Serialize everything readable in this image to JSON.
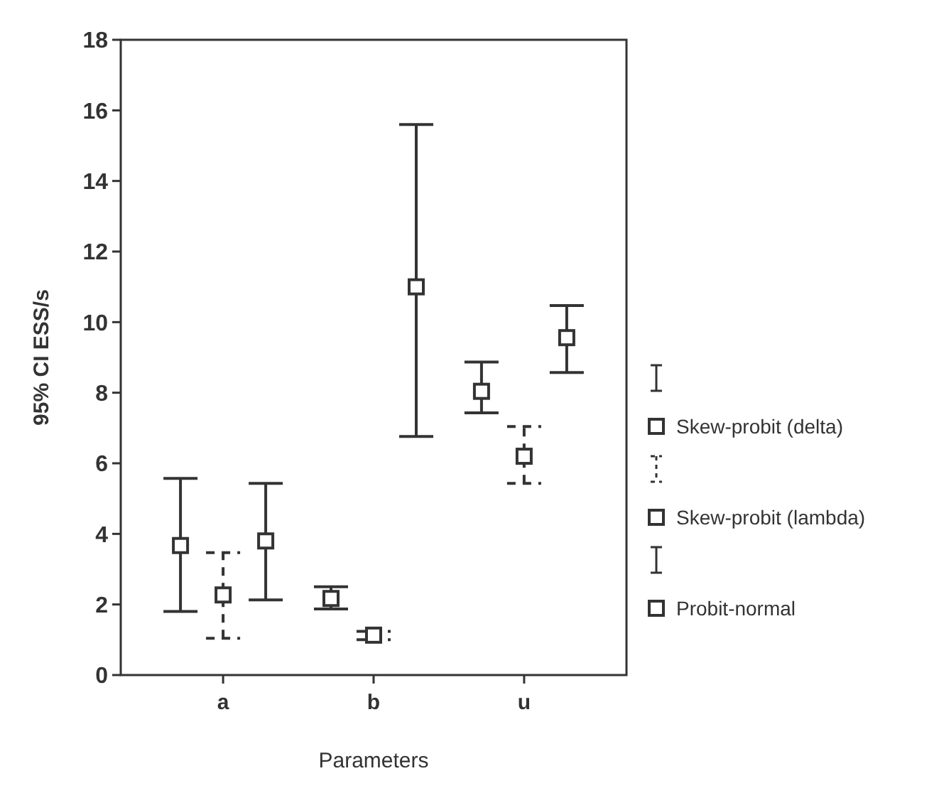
{
  "chart_data": {
    "type": "scatter",
    "ylabel": "95% CI ESS/s",
    "xlabel": "Parameters",
    "categories": [
      "a",
      "b",
      "u"
    ],
    "ylim": [
      0,
      18
    ],
    "yticks": [
      0,
      2,
      4,
      6,
      8,
      10,
      12,
      14,
      16,
      18
    ],
    "marker": "square",
    "legend": "right",
    "grid": false,
    "series": [
      {
        "name": "Skew-probit (delta)",
        "color": "#333333",
        "line_style": "solid",
        "values": [
          3.67,
          2.17,
          8.04
        ],
        "errors": [
          [
            1.8,
            5.57
          ],
          [
            1.87,
            2.5
          ],
          [
            7.43,
            8.87
          ]
        ]
      },
      {
        "name": "Skew-probit (lambda)",
        "color": "#333333",
        "line_style": "dashed",
        "values": [
          2.27,
          1.13,
          6.2
        ],
        "errors": [
          [
            1.04,
            3.47
          ],
          [
            1.0,
            1.24
          ],
          [
            5.43,
            7.04
          ]
        ]
      },
      {
        "name": "Probit-normal",
        "color": "#333333",
        "line_style": "solid",
        "values": [
          3.8,
          11.0,
          9.56
        ],
        "errors": [
          [
            2.13,
            5.43
          ],
          [
            6.76,
            15.6
          ],
          [
            8.57,
            10.47
          ]
        ]
      }
    ]
  }
}
